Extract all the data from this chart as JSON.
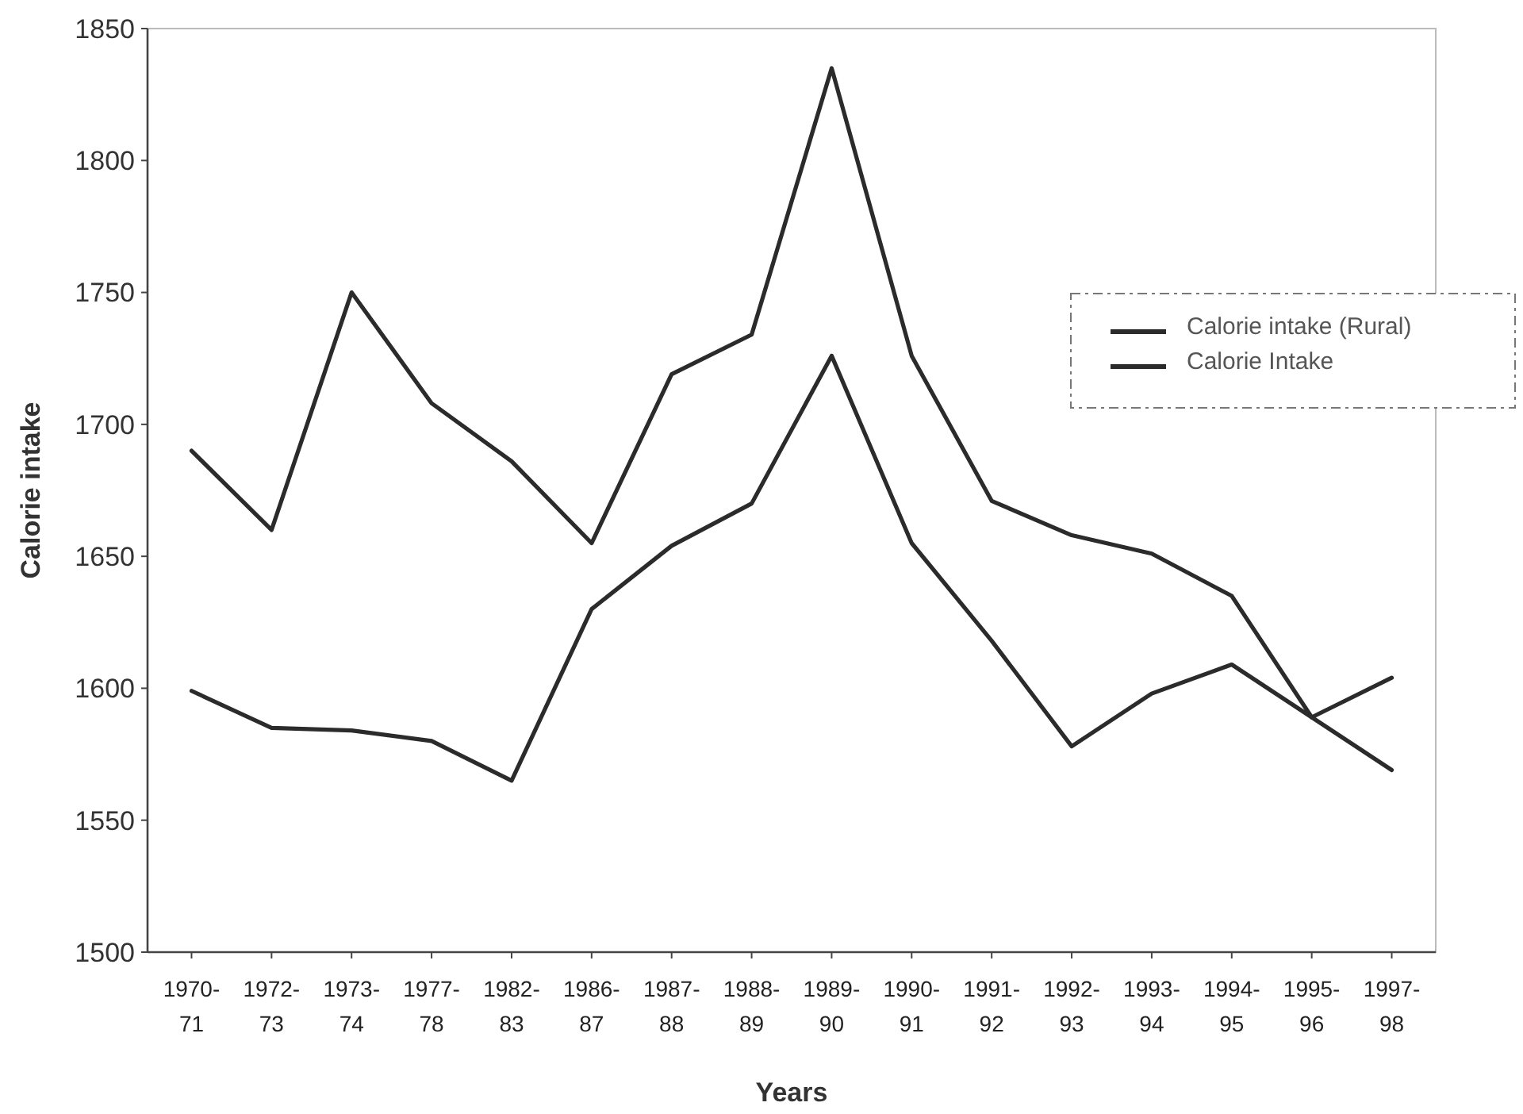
{
  "chart_data": {
    "type": "line",
    "xlabel": "Years",
    "ylabel": "Calorie intake",
    "categories": [
      "1970-71",
      "1972-73",
      "1973-74",
      "1977-78",
      "1982-83",
      "1986-87",
      "1987-88",
      "1988-89",
      "1989-90",
      "1990-91",
      "1991-92",
      "1992-93",
      "1993-94",
      "1994-95",
      "1995-96",
      "1997-98"
    ],
    "series": [
      {
        "name": "Calorie intake (Rural)",
        "color": "#2b2b2b",
        "values": [
          1690,
          1660,
          1750,
          1708,
          1686,
          1655,
          1719,
          1734,
          1835,
          1726,
          1671,
          1658,
          1651,
          1635,
          1589,
          1569
        ]
      },
      {
        "name": "Calorie Intake",
        "color": "#2b2b2b",
        "values": [
          1599,
          1585,
          1584,
          1580,
          1565,
          1630,
          1654,
          1670,
          1726,
          1655,
          1618,
          1578,
          1598,
          1609,
          1589,
          1604
        ]
      }
    ],
    "ylim": [
      1500,
      1850
    ],
    "yticks": [
      1500,
      1550,
      1600,
      1650,
      1700,
      1750,
      1800,
      1850
    ],
    "grid": false,
    "legend": "right",
    "marker": "none",
    "line_style": "solid"
  }
}
